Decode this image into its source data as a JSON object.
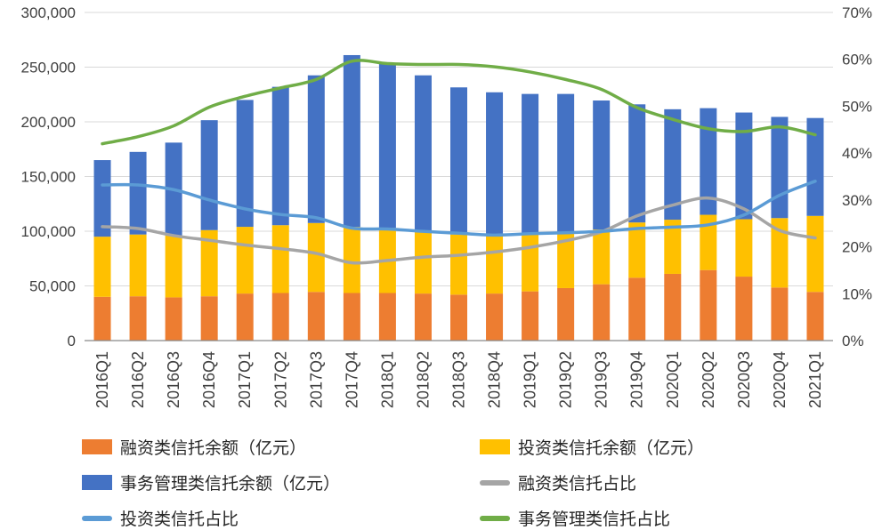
{
  "chart_data": {
    "type": "bar",
    "subtype": "stacked-bars-with-percentage-lines",
    "title": "",
    "categories": [
      "2016Q1",
      "2016Q2",
      "2016Q3",
      "2016Q4",
      "2017Q1",
      "2017Q2",
      "2017Q3",
      "2017Q4",
      "2018Q1",
      "2018Q2",
      "2018Q3",
      "2018Q4",
      "2019Q1",
      "2019Q2",
      "2019Q3",
      "2019Q4",
      "2020Q1",
      "2020Q2",
      "2020Q3",
      "2020Q4",
      "2021Q1"
    ],
    "bar_series": [
      {
        "id": "financing-balance",
        "name": "融资类信托余额（亿元）",
        "color": "#ED7D31",
        "axis": "left",
        "values": [
          40000,
          40500,
          39500,
          40500,
          43000,
          43500,
          44500,
          43500,
          43500,
          43000,
          42000,
          43000,
          45000,
          48000,
          51500,
          57500,
          61000,
          64500,
          58500,
          48500,
          44500
        ]
      },
      {
        "id": "investment-balance",
        "name": "投资类信托余额（亿元）",
        "color": "#FFC000",
        "axis": "left",
        "values": [
          55000,
          56500,
          56500,
          60500,
          61000,
          62000,
          63000,
          60500,
          59500,
          57000,
          55000,
          52500,
          52000,
          51000,
          50000,
          50500,
          49500,
          50500,
          52500,
          63500,
          69500
        ]
      },
      {
        "id": "management-balance",
        "name": "事务管理类信托余额（亿元）",
        "color": "#4472C4",
        "axis": "left",
        "values": [
          70000,
          75500,
          85000,
          100500,
          116000,
          126500,
          135000,
          157000,
          150500,
          142500,
          134500,
          131500,
          128500,
          126500,
          118000,
          108000,
          101000,
          97500,
          97500,
          92500,
          89500
        ]
      }
    ],
    "line_series": [
      {
        "id": "financing-ratio",
        "name": "融资类信托占比",
        "color": "#A5A5A5",
        "axis": "right",
        "values": [
          24.3,
          23.9,
          22.4,
          21.4,
          20.4,
          19.6,
          18.6,
          16.6,
          17.1,
          17.8,
          18.2,
          18.9,
          19.9,
          21.3,
          23.2,
          26.6,
          28.9,
          30.4,
          28.1,
          23.5,
          21.9
        ]
      },
      {
        "id": "investment-ratio",
        "name": "投资类信托占比",
        "color": "#5B9BD5",
        "axis": "right",
        "values": [
          33.2,
          33.2,
          32.2,
          30.0,
          28.1,
          26.9,
          26.2,
          24.0,
          23.8,
          23.3,
          22.9,
          22.5,
          22.8,
          23.0,
          23.3,
          23.9,
          24.2,
          24.7,
          26.8,
          31.0,
          34.0
        ]
      },
      {
        "id": "management-ratio",
        "name": "事务管理类信托占比",
        "color": "#70AD47",
        "axis": "right",
        "values": [
          42.0,
          43.5,
          45.8,
          49.8,
          52.1,
          53.9,
          55.7,
          59.6,
          59.1,
          58.9,
          58.9,
          58.4,
          57.3,
          55.7,
          53.6,
          49.7,
          47.2,
          45.2,
          44.6,
          45.6,
          43.9
        ]
      }
    ],
    "left_axis": {
      "min": 0,
      "max": 300000,
      "step": 50000,
      "tick_labels": [
        "0",
        "50,000",
        "100,000",
        "150,000",
        "200,000",
        "250,000",
        "300,000"
      ]
    },
    "right_axis": {
      "min": 0,
      "max": 70,
      "step": 10,
      "tick_labels": [
        "0%",
        "10%",
        "20%",
        "30%",
        "40%",
        "50%",
        "60%",
        "70%"
      ]
    },
    "grid": true,
    "legend_position": "bottom"
  },
  "legend": {
    "items": [
      {
        "id": "financing-balance",
        "label": "融资类信托余额（亿元）",
        "marker": "bar",
        "color": "#ED7D31"
      },
      {
        "id": "investment-balance",
        "label": "投资类信托余额（亿元）",
        "marker": "bar",
        "color": "#FFC000"
      },
      {
        "id": "management-balance",
        "label": "事务管理类信托余额（亿元）",
        "marker": "bar",
        "color": "#4472C4"
      },
      {
        "id": "financing-ratio",
        "label": "融资类信托占比",
        "marker": "line",
        "color": "#A5A5A5"
      },
      {
        "id": "investment-ratio",
        "label": "投资类信托占比",
        "marker": "line",
        "color": "#5B9BD5"
      },
      {
        "id": "management-ratio",
        "label": "事务管理类信托占比",
        "marker": "line",
        "color": "#70AD47"
      }
    ]
  },
  "colors": {
    "axis_text": "#404040",
    "grid": "#D9D9D9",
    "axis_line": "#898989",
    "legend_text": "#262626",
    "background": "#ffffff"
  }
}
